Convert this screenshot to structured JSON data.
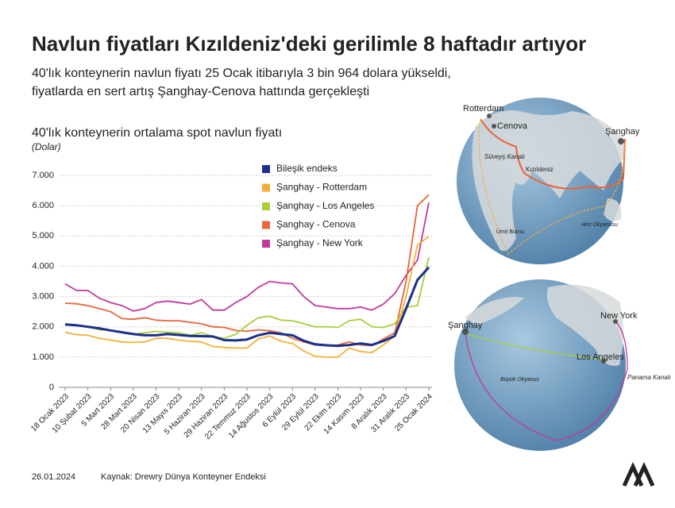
{
  "header": {
    "title": "Navlun fiyatları Kızıldeniz'deki gerilimle 8 haftadır artıyor",
    "subtitle": [
      "40'lık konteynerin navlun fiyatı 25 Ocak itibarıyla 3 bin 964 dolara yükseldi,",
      "fiyatlarda en sert artış Şanghay-Cenova hattında gerçekleşti"
    ]
  },
  "chart_data": {
    "type": "line",
    "title": "40'lık konteynerin ortalama spot navlun fiyatı",
    "subtitle": "(Dolar)",
    "categories": [
      "18 Ocak 2023",
      null,
      "10 Şubat 2023",
      null,
      "5 Mart 2023",
      null,
      "28 Mart 2023",
      null,
      "20 Nisan 2023",
      null,
      "13 Mayıs 2023",
      null,
      "5 Haziran 2023",
      null,
      "29 Haziran 2023",
      null,
      "22 Temmuz 2023",
      null,
      "14 Ağustos 2023",
      null,
      "6 Eylül 2023",
      null,
      "29 Eylül 2023",
      null,
      "22 Ekim 2023",
      null,
      "14 Kasım 2023",
      null,
      "8 Aralık 2023",
      null,
      "31 Aralık 2023",
      null,
      "25 Ocak 2024"
    ],
    "ylim": [
      0,
      7000
    ],
    "yticks": [
      0,
      {
        "value": 1000,
        "label": "1.000"
      },
      {
        "value": 2000,
        "label": "2.000"
      },
      {
        "value": 3000,
        "label": "3.000"
      },
      {
        "value": 4000,
        "label": "4.000"
      },
      {
        "value": 5000,
        "label": "5.000"
      },
      {
        "value": 6000,
        "label": "6.000"
      },
      {
        "value": 7000,
        "label": "7.000"
      }
    ],
    "grid": true,
    "series": [
      {
        "name": "Bileşik endeks",
        "color": "#1b2f8c",
        "values": [
          2080,
          2050,
          2000,
          1950,
          1880,
          1820,
          1760,
          1720,
          1720,
          1760,
          1730,
          1700,
          1690,
          1680,
          1560,
          1550,
          1580,
          1720,
          1800,
          1760,
          1720,
          1540,
          1420,
          1390,
          1370,
          1400,
          1450,
          1400,
          1530,
          1700,
          2600,
          3550,
          3964
        ]
      },
      {
        "name": "Şanghay - Rotterdam",
        "color": "#f2b035",
        "values": [
          1820,
          1740,
          1720,
          1620,
          1560,
          1500,
          1480,
          1500,
          1620,
          1620,
          1560,
          1520,
          1500,
          1350,
          1320,
          1300,
          1300,
          1600,
          1700,
          1520,
          1450,
          1200,
          1020,
          1000,
          1000,
          1300,
          1180,
          1150,
          1400,
          1700,
          3000,
          4700,
          4990
        ]
      },
      {
        "name": "Şanghay - Los Angeles",
        "color": "#a8cf3a",
        "values": [
          2100,
          2050,
          2000,
          1900,
          1880,
          1800,
          1760,
          1800,
          1850,
          1820,
          1800,
          1720,
          1800,
          1680,
          1620,
          1750,
          2050,
          2300,
          2350,
          2220,
          2200,
          2100,
          2000,
          2000,
          1980,
          2200,
          2250,
          2000,
          1980,
          2100,
          2650,
          2700,
          4300
        ]
      },
      {
        "name": "Şanghay  - Cenova",
        "color": "#e8643a",
        "values": [
          2780,
          2760,
          2700,
          2600,
          2500,
          2270,
          2250,
          2300,
          2220,
          2200,
          2200,
          2150,
          2100,
          2000,
          1980,
          1880,
          1850,
          1900,
          1870,
          1800,
          1620,
          1500,
          1400,
          1380,
          1400,
          1500,
          1400,
          1380,
          1600,
          1800,
          3500,
          6000,
          6360
        ]
      },
      {
        "name": "Şanghay - New York",
        "color": "#c2399b",
        "values": [
          3420,
          3200,
          3200,
          2950,
          2800,
          2700,
          2520,
          2600,
          2800,
          2850,
          2800,
          2750,
          2900,
          2550,
          2550,
          2800,
          3000,
          3300,
          3500,
          3450,
          3420,
          3000,
          2700,
          2650,
          2600,
          2600,
          2650,
          2550,
          2750,
          3100,
          3700,
          4200,
          6100
        ]
      }
    ]
  },
  "map_labels": {
    "top": [
      "Rotterdam",
      "Cenova",
      "Şanghay",
      "Süveyş Kanalı",
      "Kızıldeniz",
      "Hint Okyanusu",
      "Ümit Burnu"
    ],
    "bottom": [
      "Şanghay",
      "New York",
      "Los Angeles",
      "Panama Kanalı",
      "Büyük Okyanus"
    ]
  },
  "footer": {
    "date": "26.01.2024",
    "source": "Kaynak: Drewry Dünya Konteyner Endeksi"
  }
}
